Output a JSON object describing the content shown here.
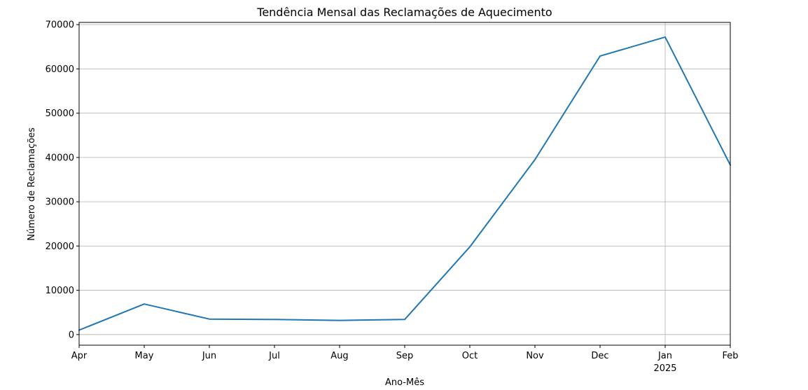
{
  "chart_data": {
    "type": "line",
    "title": "Tendência Mensal das Reclamações de Aquecimento",
    "xlabel": "Ano-Mês",
    "ylabel": "Número de Reclamações",
    "categories": [
      "Apr",
      "May",
      "Jun",
      "Jul",
      "Aug",
      "Sep",
      "Oct",
      "Nov",
      "Dec",
      "Jan",
      "Feb"
    ],
    "year_label": {
      "category": "Jan",
      "text": "2025"
    },
    "series": [
      {
        "values": [
          1000,
          6900,
          3500,
          3400,
          3200,
          3400,
          19800,
          39500,
          62900,
          67200,
          38300
        ],
        "color": "#1f77b4"
      }
    ],
    "yticks": [
      0,
      10000,
      20000,
      30000,
      40000,
      50000,
      60000,
      70000
    ],
    "ylim": [
      -2400,
      70500
    ],
    "grid": {
      "horizontal": true,
      "vertical_at": [
        "Jan"
      ]
    },
    "legend": "none"
  }
}
